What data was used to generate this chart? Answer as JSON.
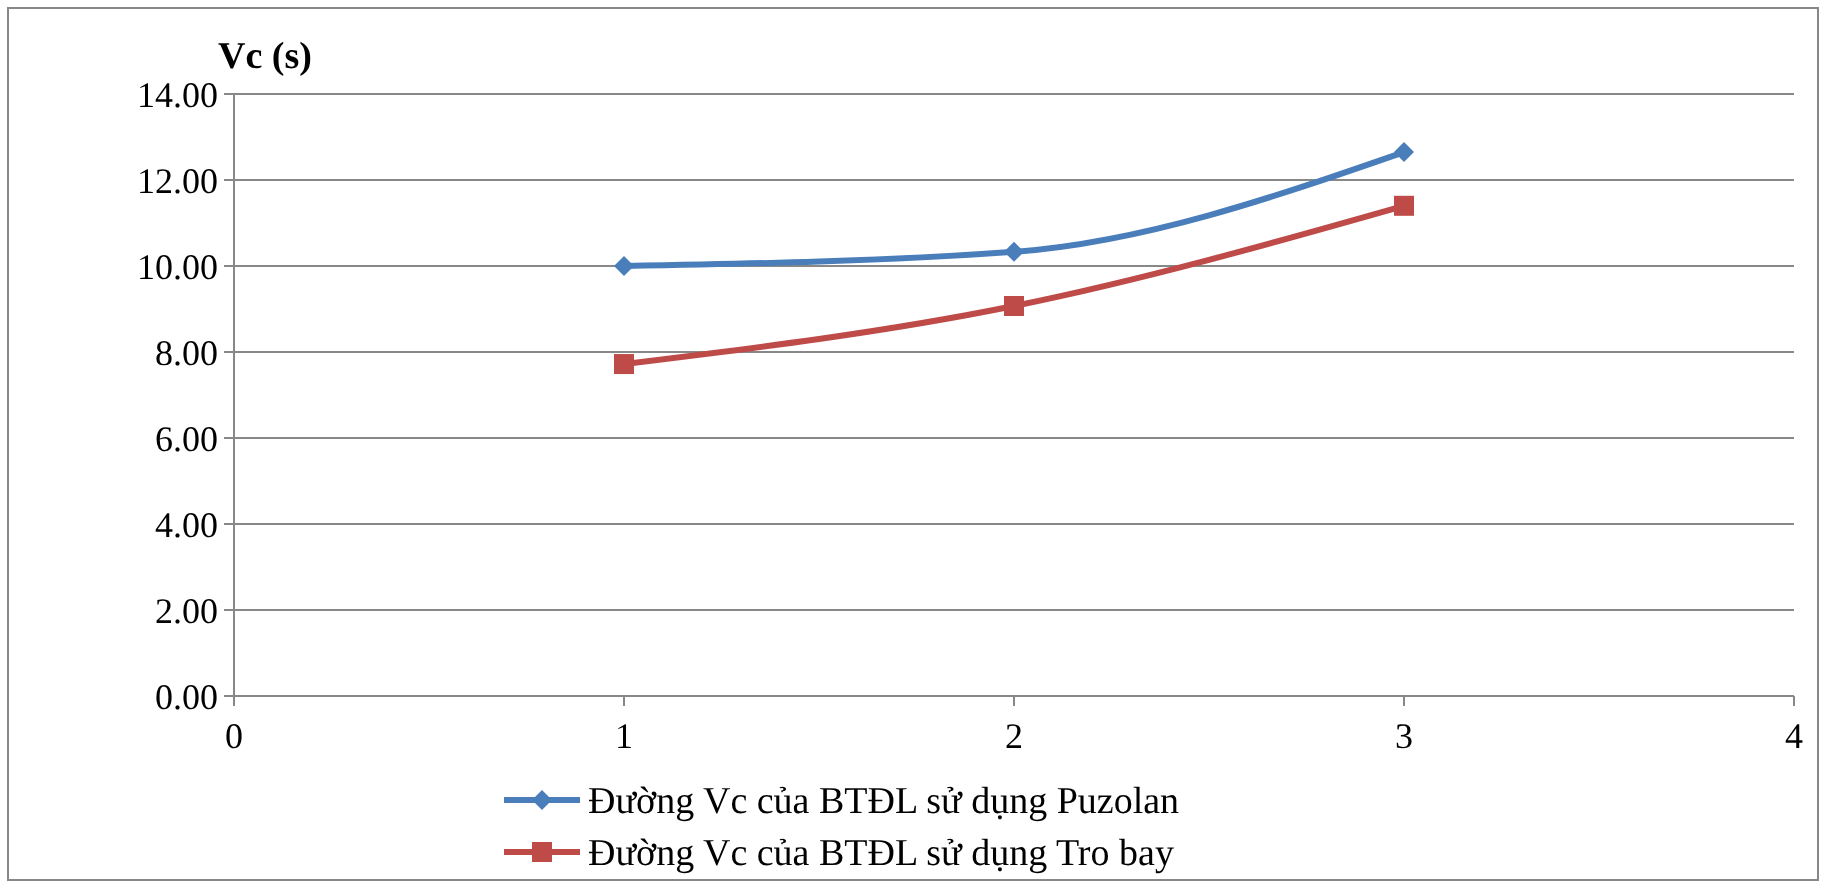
{
  "chart_data": {
    "type": "line",
    "ylabel": "Vc (s)",
    "x": [
      1,
      2,
      3
    ],
    "series": [
      {
        "name": "Đường Vc của BTĐL sử dụng Puzolan",
        "color": "#4a7ebb",
        "values": [
          10.0,
          10.33,
          12.65
        ],
        "marker": "diamond"
      },
      {
        "name": "Đường Vc của BTĐL sử dụng Tro bay",
        "color": "#be4b48",
        "values": [
          7.72,
          9.07,
          11.4
        ],
        "marker": "square"
      }
    ],
    "xlim": [
      0,
      4
    ],
    "xticks": [
      0,
      1,
      2,
      3,
      4
    ],
    "ylim": [
      0,
      14
    ],
    "yticks": [
      {
        "value": 0,
        "label": "0.00"
      },
      {
        "value": 2,
        "label": "2.00"
      },
      {
        "value": 4,
        "label": "4.00"
      },
      {
        "value": 6,
        "label": "6.00"
      },
      {
        "value": 8,
        "label": "8.00"
      },
      {
        "value": 10,
        "label": "10.00"
      },
      {
        "value": 12,
        "label": "12.00"
      },
      {
        "value": 14,
        "label": "14.00"
      }
    ],
    "grid": "y",
    "legend": "bottom"
  }
}
